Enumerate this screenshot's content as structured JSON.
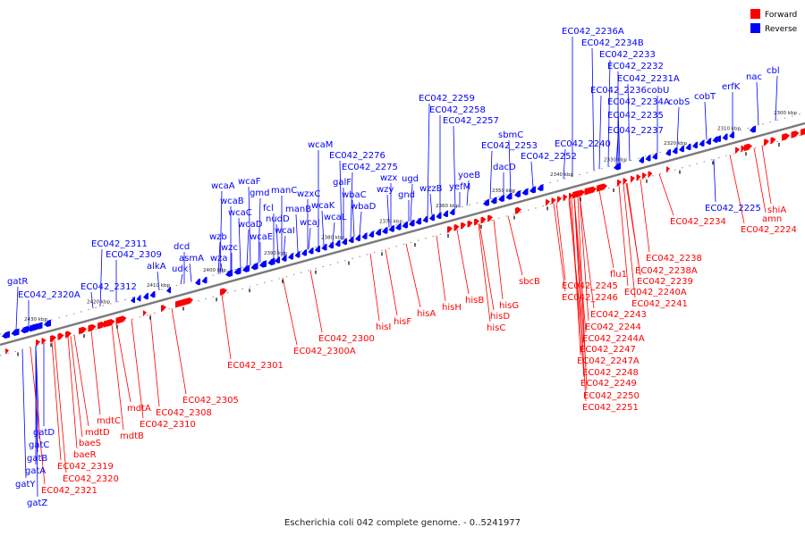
{
  "caption": "Escherichia coli 042 complete genome. - 0..5241977",
  "legend": [
    {
      "label": "Forward",
      "color": "#ff0000"
    },
    {
      "label": "Reverse",
      "color": "#0000ff"
    }
  ],
  "colors": {
    "forward": "#ff0000",
    "reverse": "#0000ff",
    "backbone": "#7a7a7a"
  },
  "scale": {
    "unit": "kbp",
    "ticks": [
      {
        "label": "2300 kbp"
      },
      {
        "label": "2310 kbp"
      },
      {
        "label": "2320 kbp"
      },
      {
        "label": "2330 kbp"
      },
      {
        "label": "2340 kbp"
      },
      {
        "label": "2350 kbp"
      },
      {
        "label": "2360 kbp"
      },
      {
        "label": "2370 kbp"
      },
      {
        "label": "2380 kbp"
      },
      {
        "label": "2390 kbp"
      },
      {
        "label": "2400 kbp"
      },
      {
        "label": "2410 kbp"
      },
      {
        "label": "2420 kbp"
      },
      {
        "label": "2430 kbp"
      }
    ]
  },
  "reverse_labels": [
    "gatR",
    "EC042_2320A",
    "EC042_2312",
    "EC042_2311",
    "EC042_2309",
    "alkA",
    "udk",
    "dcd",
    "asmA",
    "wzb",
    "wzc",
    "wza",
    "wcaA",
    "wcaB",
    "wcaC",
    "wcaD",
    "wcaE",
    "wcaF",
    "gmd",
    "fcl",
    "nudD",
    "wcaI",
    "manC",
    "manB",
    "wcaJ",
    "wzxC",
    "wcaK",
    "wcaL",
    "wcaM",
    "EC042_2276",
    "EC042_2275",
    "galF",
    "wbaC",
    "wbaD",
    "wzx",
    "wzy",
    "ugd",
    "gnd",
    "wzzB",
    "EC042_2259",
    "EC042_2258",
    "EC042_2257",
    "yoeB",
    "yefM",
    "sbmC",
    "EC042_2253",
    "dacD",
    "EC042_2252",
    "EC042_2240",
    "EC042_2236A",
    "EC042_2234B",
    "EC042_2233",
    "EC042_2232",
    "EC042_2231A",
    "EC042_2236",
    "cobU",
    "EC042_2234A",
    "cobS",
    "EC042_2235",
    "cobT",
    "EC042_2237",
    "erfK",
    "nac",
    "cbl",
    "EC042_2225",
    "gatD",
    "gatC",
    "gatB",
    "gatA",
    "gatY",
    "gatZ"
  ],
  "forward_labels": [
    "EC042_2319",
    "EC042_2320",
    "EC042_2321",
    "baeR",
    "baeS",
    "mdtD",
    "mdtC",
    "mdtB",
    "mdtA",
    "EC042_2308",
    "EC042_2310",
    "EC042_2305",
    "EC042_2301",
    "EC042_2300",
    "EC042_2300A",
    "hisI",
    "hisF",
    "hisA",
    "hisH",
    "hisB",
    "hisD",
    "hisG",
    "hisC",
    "sbcB",
    "EC042_2245",
    "EC042_2246",
    "EC042_2243",
    "EC042_2244",
    "EC042_2244A",
    "EC042_2247",
    "EC042_2247A",
    "EC042_2248",
    "EC042_2249",
    "EC042_2250",
    "EC042_2251",
    "flu1",
    "EC042_2238",
    "EC042_2238A",
    "EC042_2239",
    "EC042_2240A",
    "EC042_2241",
    "EC042_2234",
    "shiA",
    "amn",
    "EC042_2224"
  ]
}
